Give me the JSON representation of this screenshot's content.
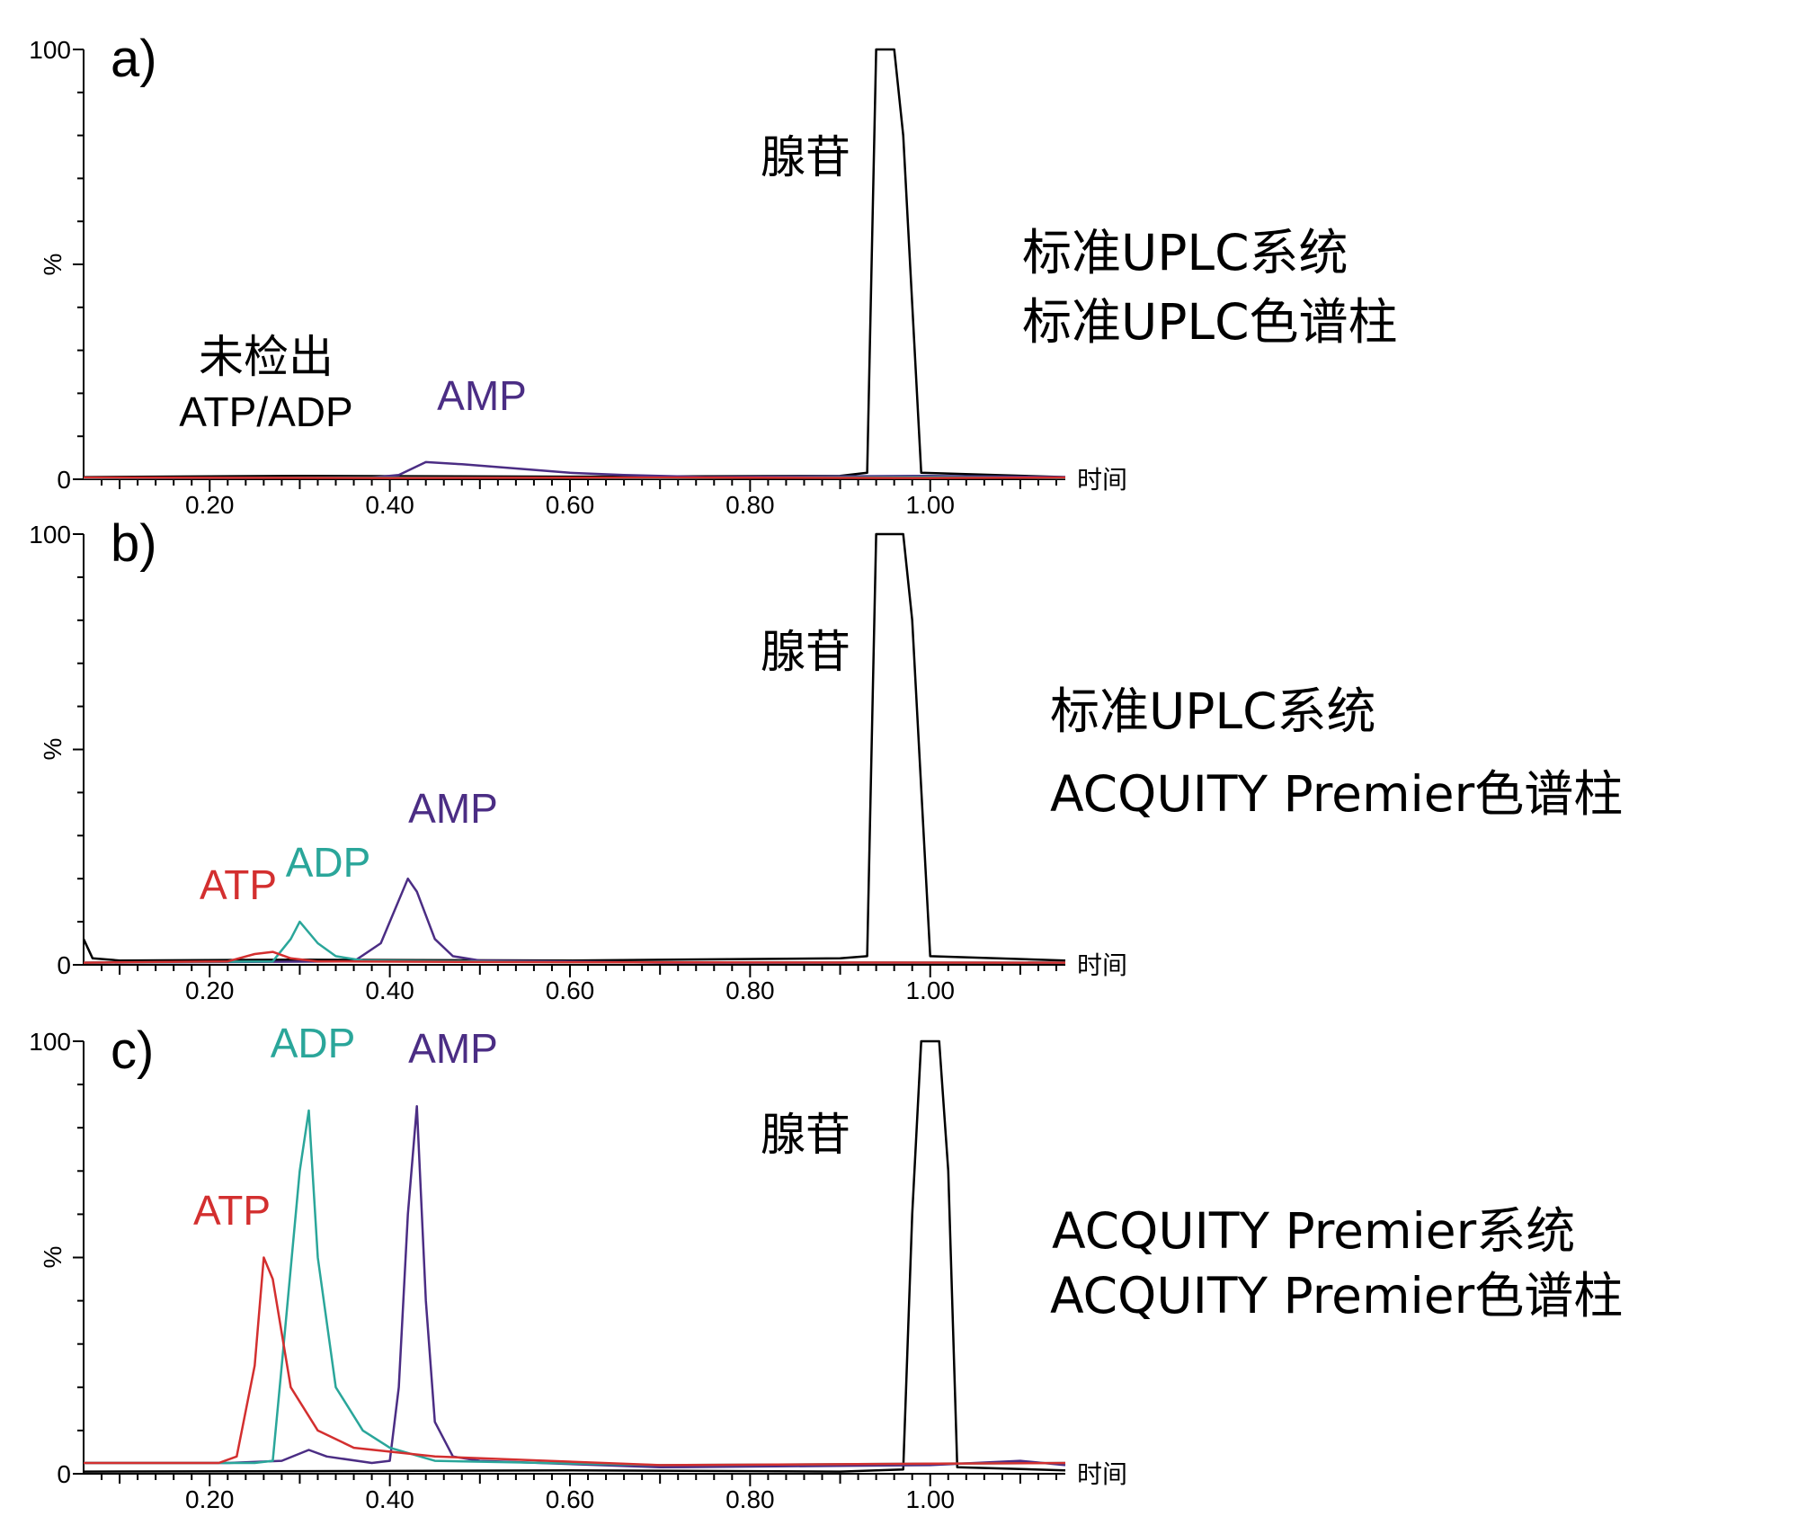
{
  "colors": {
    "adenosine": "#000000",
    "AMP": "#4b2d84",
    "ADP": "#2aa69a",
    "ATP": "#d32f2f"
  },
  "chart_data": [
    {
      "type": "line",
      "panel_label": "a)",
      "x_label": "时间",
      "y_label": "%",
      "xlim": [
        0.06,
        1.15
      ],
      "ylim": [
        0,
        100
      ],
      "x_ticks": [
        "0.20",
        "0.40",
        "0.60",
        "0.80",
        "1.00"
      ],
      "y_ticks": [
        "0",
        "100"
      ],
      "annotations": [
        {
          "text": "腺苷",
          "series": "adenosine"
        },
        {
          "text": "AMP",
          "series": "AMP"
        },
        {
          "text": "未检出",
          "series": "none"
        },
        {
          "text": "ATP/ADP",
          "series": "none"
        }
      ],
      "notes": [
        "标准UPLC系统",
        "标准UPLC色谱柱"
      ],
      "series": [
        {
          "name": "腺苷",
          "color_key": "adenosine",
          "x": [
            0.06,
            0.3,
            0.6,
            0.9,
            0.93,
            0.94,
            0.955,
            0.96,
            0.97,
            0.99,
            1.15
          ],
          "y": [
            0.5,
            0.8,
            0.6,
            0.8,
            1.5,
            100,
            100,
            100,
            80,
            1.5,
            0.5
          ]
        },
        {
          "name": "AMP",
          "color_key": "AMP",
          "x": [
            0.06,
            0.38,
            0.41,
            0.44,
            0.48,
            0.54,
            0.6,
            0.66,
            0.75,
            1.0,
            1.15
          ],
          "y": [
            0.3,
            0.4,
            1.0,
            4.0,
            3.5,
            2.5,
            1.5,
            1.0,
            0.5,
            0.8,
            0.5
          ]
        },
        {
          "name": "ADP",
          "color_key": "ADP",
          "x": [
            0.06,
            0.4,
            0.7,
            1.0,
            1.15
          ],
          "y": [
            0.3,
            0.4,
            0.3,
            0.5,
            0.3
          ]
        },
        {
          "name": "ATP",
          "color_key": "ATP",
          "x": [
            0.06,
            0.4,
            0.7,
            1.0,
            1.15
          ],
          "y": [
            0.4,
            0.3,
            0.4,
            0.3,
            0.4
          ]
        }
      ]
    },
    {
      "type": "line",
      "panel_label": "b)",
      "x_label": "时间",
      "y_label": "%",
      "xlim": [
        0.06,
        1.15
      ],
      "ylim": [
        0,
        100
      ],
      "x_ticks": [
        "0.20",
        "0.40",
        "0.60",
        "0.80",
        "1.00"
      ],
      "y_ticks": [
        "0",
        "100"
      ],
      "annotations": [
        {
          "text": "腺苷",
          "series": "adenosine"
        },
        {
          "text": "AMP",
          "series": "AMP"
        },
        {
          "text": "ADP",
          "series": "ADP"
        },
        {
          "text": "ATP",
          "series": "ATP"
        }
      ],
      "notes": [
        "标准UPLC系统",
        "ACQUITY Premier色谱柱"
      ],
      "series": [
        {
          "name": "腺苷",
          "color_key": "adenosine",
          "x": [
            0.06,
            0.07,
            0.1,
            0.3,
            0.6,
            0.9,
            0.93,
            0.94,
            0.96,
            0.97,
            0.98,
            1.0,
            1.15
          ],
          "y": [
            6,
            1.5,
            1.0,
            1.2,
            1.0,
            1.5,
            2.0,
            100,
            100,
            100,
            80,
            2.0,
            1.0
          ]
        },
        {
          "name": "AMP",
          "color_key": "AMP",
          "x": [
            0.06,
            0.36,
            0.39,
            0.4,
            0.42,
            0.43,
            0.45,
            0.47,
            0.5,
            0.7,
            1.15
          ],
          "y": [
            0.5,
            0.8,
            5,
            10,
            20,
            17,
            6,
            2,
            1,
            0.5,
            0.5
          ]
        },
        {
          "name": "ADP",
          "color_key": "ADP",
          "x": [
            0.06,
            0.27,
            0.29,
            0.3,
            0.32,
            0.34,
            0.37,
            0.6,
            1.15
          ],
          "y": [
            0.5,
            0.8,
            6,
            10,
            5,
            2,
            1,
            0.6,
            0.5
          ]
        },
        {
          "name": "ATP",
          "color_key": "ATP",
          "x": [
            0.06,
            0.22,
            0.25,
            0.27,
            0.29,
            0.32,
            0.6,
            1.15
          ],
          "y": [
            0.5,
            0.8,
            2.5,
            3.0,
            1.5,
            0.8,
            0.6,
            0.5
          ]
        }
      ]
    },
    {
      "type": "line",
      "panel_label": "c)",
      "x_label": "时间",
      "y_label": "%",
      "xlim": [
        0.06,
        1.15
      ],
      "ylim": [
        0,
        100
      ],
      "x_ticks": [
        "0.20",
        "0.40",
        "0.60",
        "0.80",
        "1.00"
      ],
      "y_ticks": [
        "0",
        "100"
      ],
      "annotations": [
        {
          "text": "腺苷",
          "series": "adenosine"
        },
        {
          "text": "AMP",
          "series": "AMP"
        },
        {
          "text": "ADP",
          "series": "ADP"
        },
        {
          "text": "ATP",
          "series": "ATP"
        }
      ],
      "notes": [
        "ACQUITY Premier系统",
        "ACQUITY Premier色谱柱"
      ],
      "series": [
        {
          "name": "腺苷",
          "color_key": "adenosine",
          "x": [
            0.06,
            0.3,
            0.6,
            0.9,
            0.97,
            0.98,
            0.99,
            1.01,
            1.02,
            1.03,
            1.15
          ],
          "y": [
            0.5,
            0.6,
            0.8,
            0.5,
            1.0,
            60,
            100,
            100,
            70,
            1.5,
            0.8
          ]
        },
        {
          "name": "AMP",
          "color_key": "AMP",
          "x": [
            0.06,
            0.22,
            0.28,
            0.31,
            0.33,
            0.38,
            0.4,
            0.41,
            0.42,
            0.43,
            0.44,
            0.45,
            0.47,
            0.5,
            0.7,
            1.0,
            1.1,
            1.15
          ],
          "y": [
            2.5,
            2.5,
            3.0,
            5.5,
            4.0,
            2.5,
            3,
            20,
            60,
            85,
            40,
            12,
            4,
            3,
            1.5,
            2,
            3,
            2
          ]
        },
        {
          "name": "ADP",
          "color_key": "ADP",
          "x": [
            0.06,
            0.25,
            0.27,
            0.28,
            0.3,
            0.31,
            0.32,
            0.34,
            0.37,
            0.4,
            0.45,
            0.7,
            1.15
          ],
          "y": [
            2.5,
            2.5,
            3,
            25,
            70,
            84,
            50,
            20,
            10,
            6,
            3,
            2,
            2.5
          ]
        },
        {
          "name": "ATP",
          "color_key": "ATP",
          "x": [
            0.06,
            0.21,
            0.23,
            0.25,
            0.26,
            0.27,
            0.29,
            0.32,
            0.36,
            0.45,
            0.7,
            1.15
          ],
          "y": [
            2.5,
            2.5,
            4,
            25,
            50,
            45,
            20,
            10,
            6,
            4,
            2,
            2.5
          ]
        }
      ]
    }
  ]
}
